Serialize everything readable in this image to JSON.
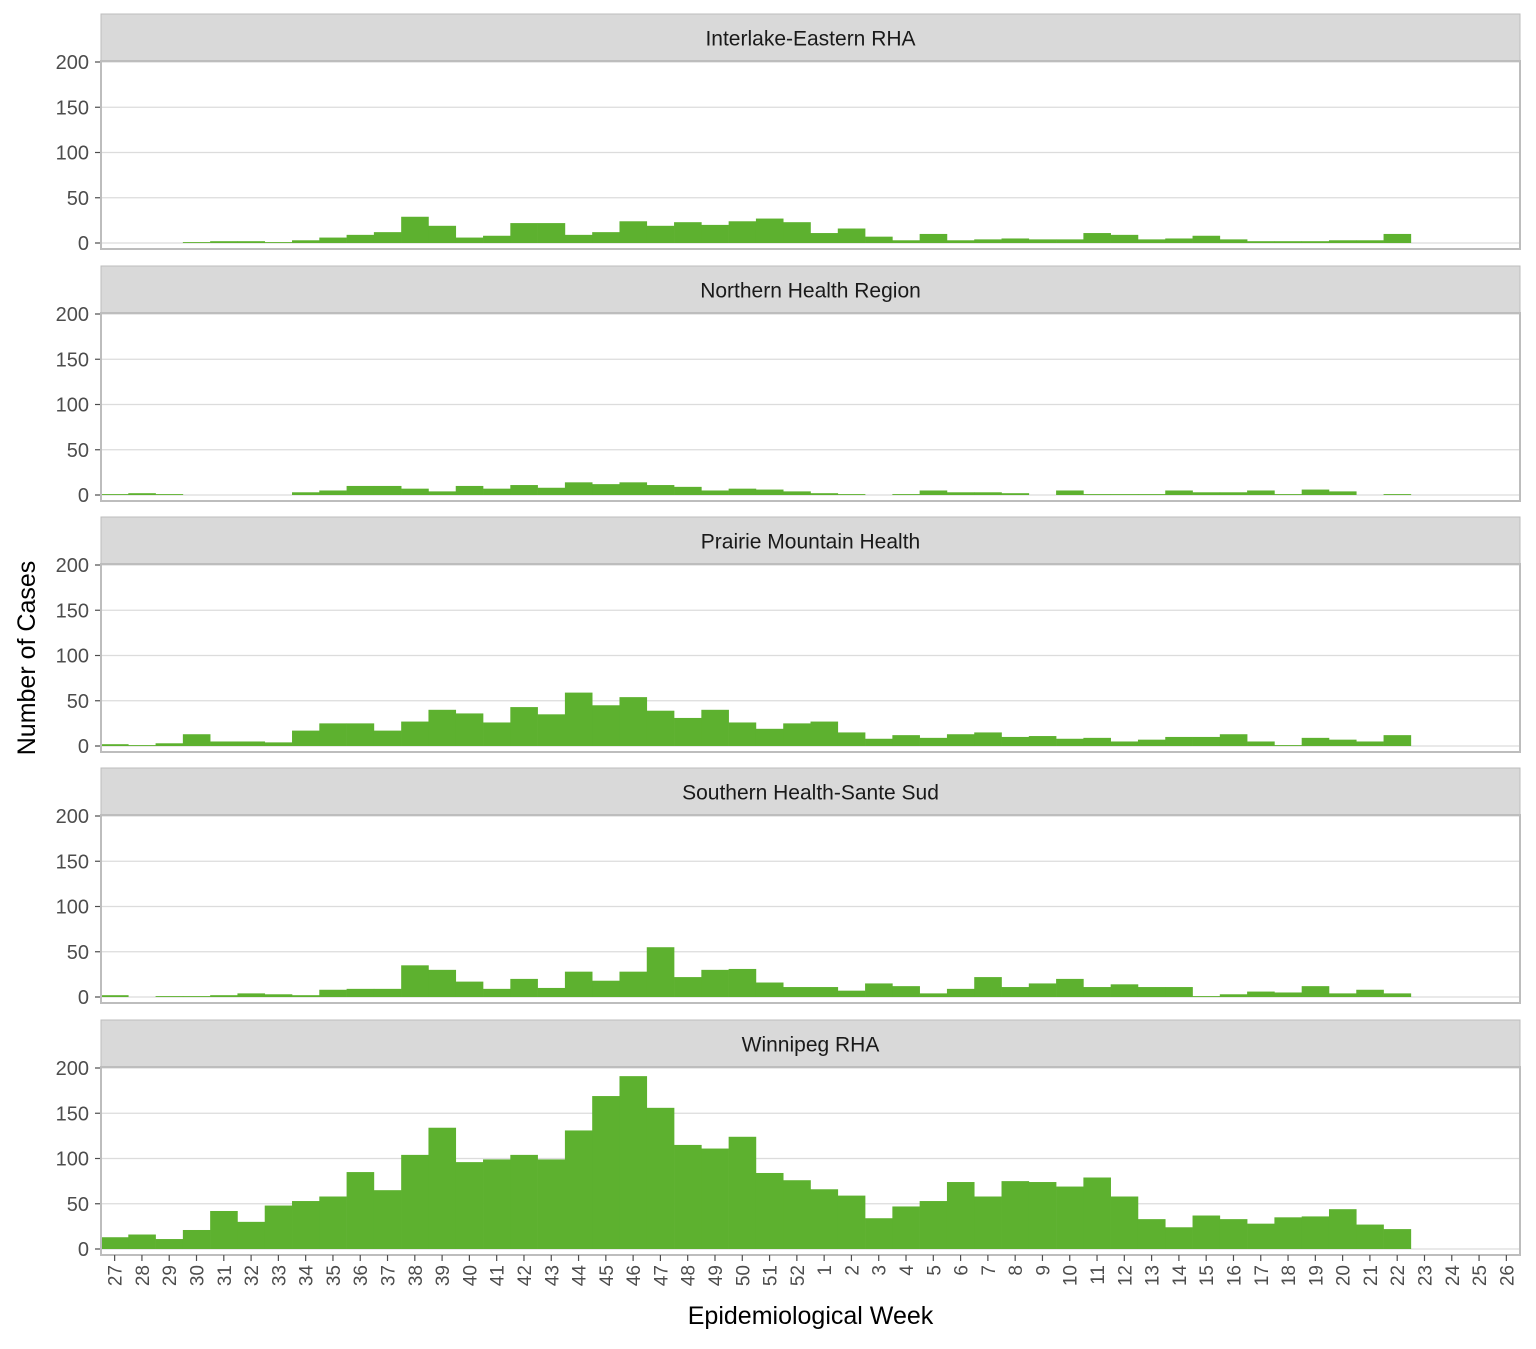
{
  "chart_data": {
    "type": "bar",
    "xlabel": "Epidemiological Week",
    "ylabel": "Number of Cases",
    "ylim": [
      0,
      200
    ],
    "yticks": [
      0,
      50,
      100,
      150,
      200
    ],
    "grid": true,
    "bar_color": "#5DB12F",
    "strip_color": "#D9D9D9",
    "categories": [
      "27",
      "28",
      "29",
      "30",
      "31",
      "32",
      "33",
      "34",
      "35",
      "36",
      "37",
      "38",
      "39",
      "40",
      "41",
      "42",
      "43",
      "44",
      "45",
      "46",
      "47",
      "48",
      "49",
      "50",
      "51",
      "52",
      "1",
      "2",
      "3",
      "4",
      "5",
      "6",
      "7",
      "8",
      "9",
      "10",
      "11",
      "12",
      "13",
      "14",
      "15",
      "16",
      "17",
      "18",
      "19",
      "20",
      "21",
      "22",
      "23",
      "24",
      "25",
      "26"
    ],
    "panels": [
      {
        "name": "Interlake-Eastern RHA",
        "values": [
          0,
          0,
          0,
          1,
          2,
          2,
          1,
          3,
          6,
          9,
          12,
          29,
          19,
          6,
          8,
          22,
          22,
          9,
          12,
          24,
          19,
          23,
          20,
          24,
          27,
          23,
          11,
          16,
          7,
          3,
          10,
          3,
          4,
          5,
          4,
          4,
          11,
          9,
          4,
          5,
          8,
          4,
          2,
          2,
          2,
          3,
          3,
          10,
          0,
          0,
          0,
          0
        ]
      },
      {
        "name": "Northern Health Region",
        "values": [
          1,
          2,
          1,
          0,
          0,
          0,
          0,
          3,
          5,
          10,
          10,
          7,
          4,
          10,
          7,
          11,
          8,
          14,
          12,
          14,
          11,
          9,
          5,
          7,
          6,
          4,
          2,
          1,
          0,
          1,
          5,
          3,
          3,
          2,
          0,
          5,
          1,
          1,
          1,
          5,
          3,
          3,
          5,
          1,
          6,
          4,
          0,
          1,
          0,
          0,
          0,
          0
        ]
      },
      {
        "name": "Prairie Mountain Health",
        "values": [
          2,
          1,
          3,
          13,
          5,
          5,
          4,
          17,
          25,
          25,
          17,
          27,
          40,
          36,
          26,
          43,
          35,
          59,
          45,
          54,
          39,
          31,
          40,
          26,
          19,
          25,
          27,
          15,
          8,
          12,
          9,
          13,
          15,
          10,
          11,
          8,
          9,
          5,
          7,
          10,
          10,
          13,
          5,
          1,
          9,
          7,
          5,
          12,
          0,
          0,
          0,
          0
        ]
      },
      {
        "name": "Southern Health-Sante Sud",
        "values": [
          2,
          0,
          1,
          1,
          2,
          4,
          3,
          2,
          8,
          9,
          9,
          35,
          30,
          17,
          9,
          20,
          10,
          28,
          18,
          28,
          55,
          22,
          30,
          31,
          16,
          11,
          11,
          7,
          15,
          12,
          4,
          9,
          22,
          11,
          15,
          20,
          11,
          14,
          11,
          11,
          1,
          3,
          6,
          5,
          12,
          4,
          8,
          4,
          0,
          0,
          0,
          0
        ]
      },
      {
        "name": "Winnipeg RHA",
        "values": [
          13,
          16,
          11,
          21,
          42,
          30,
          48,
          53,
          58,
          85,
          65,
          104,
          134,
          96,
          99,
          104,
          99,
          131,
          169,
          191,
          156,
          115,
          111,
          124,
          84,
          76,
          66,
          59,
          34,
          47,
          53,
          74,
          58,
          75,
          74,
          69,
          79,
          58,
          33,
          24,
          37,
          33,
          28,
          35,
          36,
          44,
          27,
          22,
          0,
          0,
          0,
          0
        ]
      }
    ]
  }
}
